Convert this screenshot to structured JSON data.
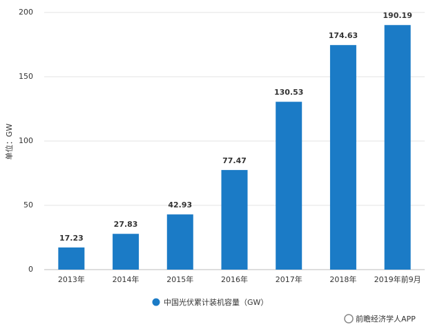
{
  "chart_data": {
    "type": "bar",
    "y_label": "单位：GW",
    "categories": [
      "2013年",
      "2014年",
      "2015年",
      "2016年",
      "2017年",
      "2018年",
      "2019年前9月"
    ],
    "values": [
      17.23,
      27.83,
      42.93,
      77.47,
      130.53,
      174.63,
      190.19
    ],
    "series_name": "中国光伏累计装机容量（GW）",
    "color": "#1b7bc6",
    "ylim": [
      0,
      200
    ],
    "yticks": [
      0,
      50,
      100,
      150,
      200
    ],
    "grid": true
  },
  "watermark": "前瞻经济学人APP"
}
